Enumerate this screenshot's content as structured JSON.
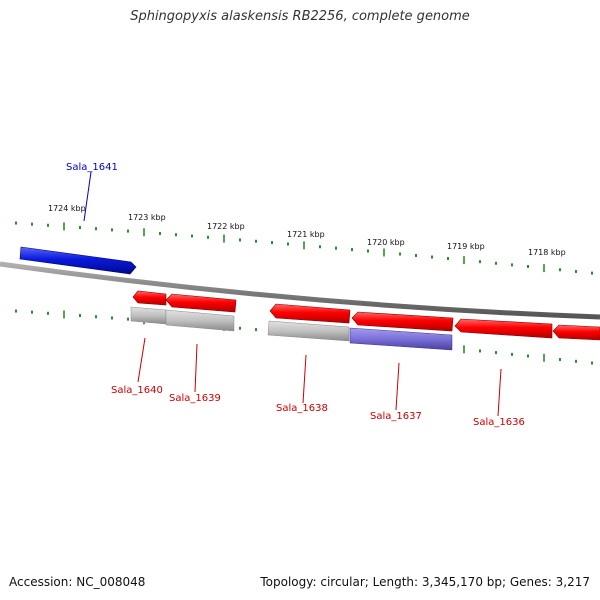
{
  "title": "Sphingopyxis alaskensis RB2256, complete genome",
  "footer": {
    "accession": "Accession: NC_008048",
    "summary": "Topology: circular; Length: 3,345,170 bp; Genes: 3,217"
  },
  "colors": {
    "background": "#ffffff",
    "backbone": "#7f7f7f",
    "ticks": "#2e8b2e",
    "forward_gene": "#0a1adc",
    "reverse_gene": "#ff0000",
    "reverse_label": "#cc0000",
    "forward_label": "#0000cc",
    "gray_feature": "#c0c0c0",
    "purple_feature": "#7a70d8"
  },
  "scale_unit": "kbp",
  "scale_ticks": [
    {
      "label": "1724 kbp"
    },
    {
      "label": "1723 kbp"
    },
    {
      "label": "1722 kbp"
    },
    {
      "label": "1721 kbp"
    },
    {
      "label": "1720 kbp"
    },
    {
      "label": "1719 kbp"
    },
    {
      "label": "1718 kbp"
    }
  ],
  "genes": [
    {
      "name": "Sala_1641",
      "strand": "forward",
      "color": "#0a1adc"
    },
    {
      "name": "Sala_1640",
      "strand": "reverse",
      "color": "#ff0000"
    },
    {
      "name": "Sala_1639",
      "strand": "reverse",
      "color": "#ff0000"
    },
    {
      "name": "Sala_1638",
      "strand": "reverse",
      "color": "#ff0000"
    },
    {
      "name": "Sala_1637",
      "strand": "reverse",
      "color": "#ff0000"
    },
    {
      "name": "Sala_1636",
      "strand": "reverse",
      "color": "#ff0000"
    }
  ],
  "features": [
    {
      "type": "gray",
      "color": "#c0c0c0"
    },
    {
      "type": "gray",
      "color": "#c0c0c0"
    },
    {
      "type": "gray",
      "color": "#c0c0c0"
    },
    {
      "type": "purple",
      "color": "#7a70d8"
    }
  ]
}
